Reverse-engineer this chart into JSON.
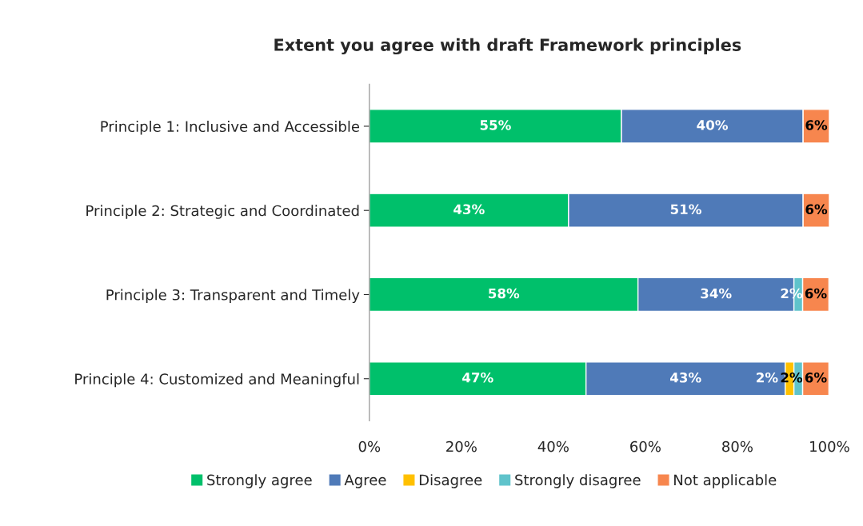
{
  "chart_data": {
    "type": "bar",
    "orientation": "horizontal",
    "stacked": true,
    "title": "Extent you agree with draft Framework principles",
    "categories": [
      "Principle 1: Inclusive and Accessible",
      "Principle 2: Strategic and Coordinated",
      "Principle 3: Transparent and Timely",
      "Principle 4: Customized and Meaningful"
    ],
    "series": [
      {
        "name": "Strongly agree",
        "color": "#00c06b",
        "values": [
          54.8,
          43.3,
          58.4,
          47.1
        ],
        "value_labels": [
          "55%",
          "43%",
          "58%",
          "47%"
        ]
      },
      {
        "name": "Agree",
        "color": "#4f7ab8",
        "values": [
          39.5,
          51.0,
          33.9,
          43.3
        ],
        "value_labels": [
          "40%",
          "51%",
          "34%",
          "43%"
        ]
      },
      {
        "name": "Disagree",
        "color": "#ffc000",
        "values": [
          null,
          null,
          null,
          1.9
        ],
        "value_labels": [
          null,
          null,
          null,
          "2%"
        ]
      },
      {
        "name": "Strongly disagree",
        "color": "#5fc3cb",
        "values": [
          null,
          null,
          1.9,
          1.9
        ],
        "value_labels": [
          null,
          null,
          "2%",
          "2%"
        ]
      },
      {
        "name": "Not applicable",
        "color": "#f7864e",
        "values": [
          5.7,
          5.7,
          5.7,
          5.7
        ],
        "value_labels": [
          "6%",
          "6%",
          "6%",
          "6%"
        ]
      }
    ],
    "xlim": [
      0,
      100
    ],
    "xticks": [
      {
        "value": 0,
        "label": "0%"
      },
      {
        "value": 20,
        "label": "20%"
      },
      {
        "value": 40,
        "label": "40%"
      },
      {
        "value": 60,
        "label": "60%"
      },
      {
        "value": 80,
        "label": "80%"
      },
      {
        "value": 100,
        "label": "100%"
      }
    ],
    "grid": false,
    "legend": "bottom"
  }
}
